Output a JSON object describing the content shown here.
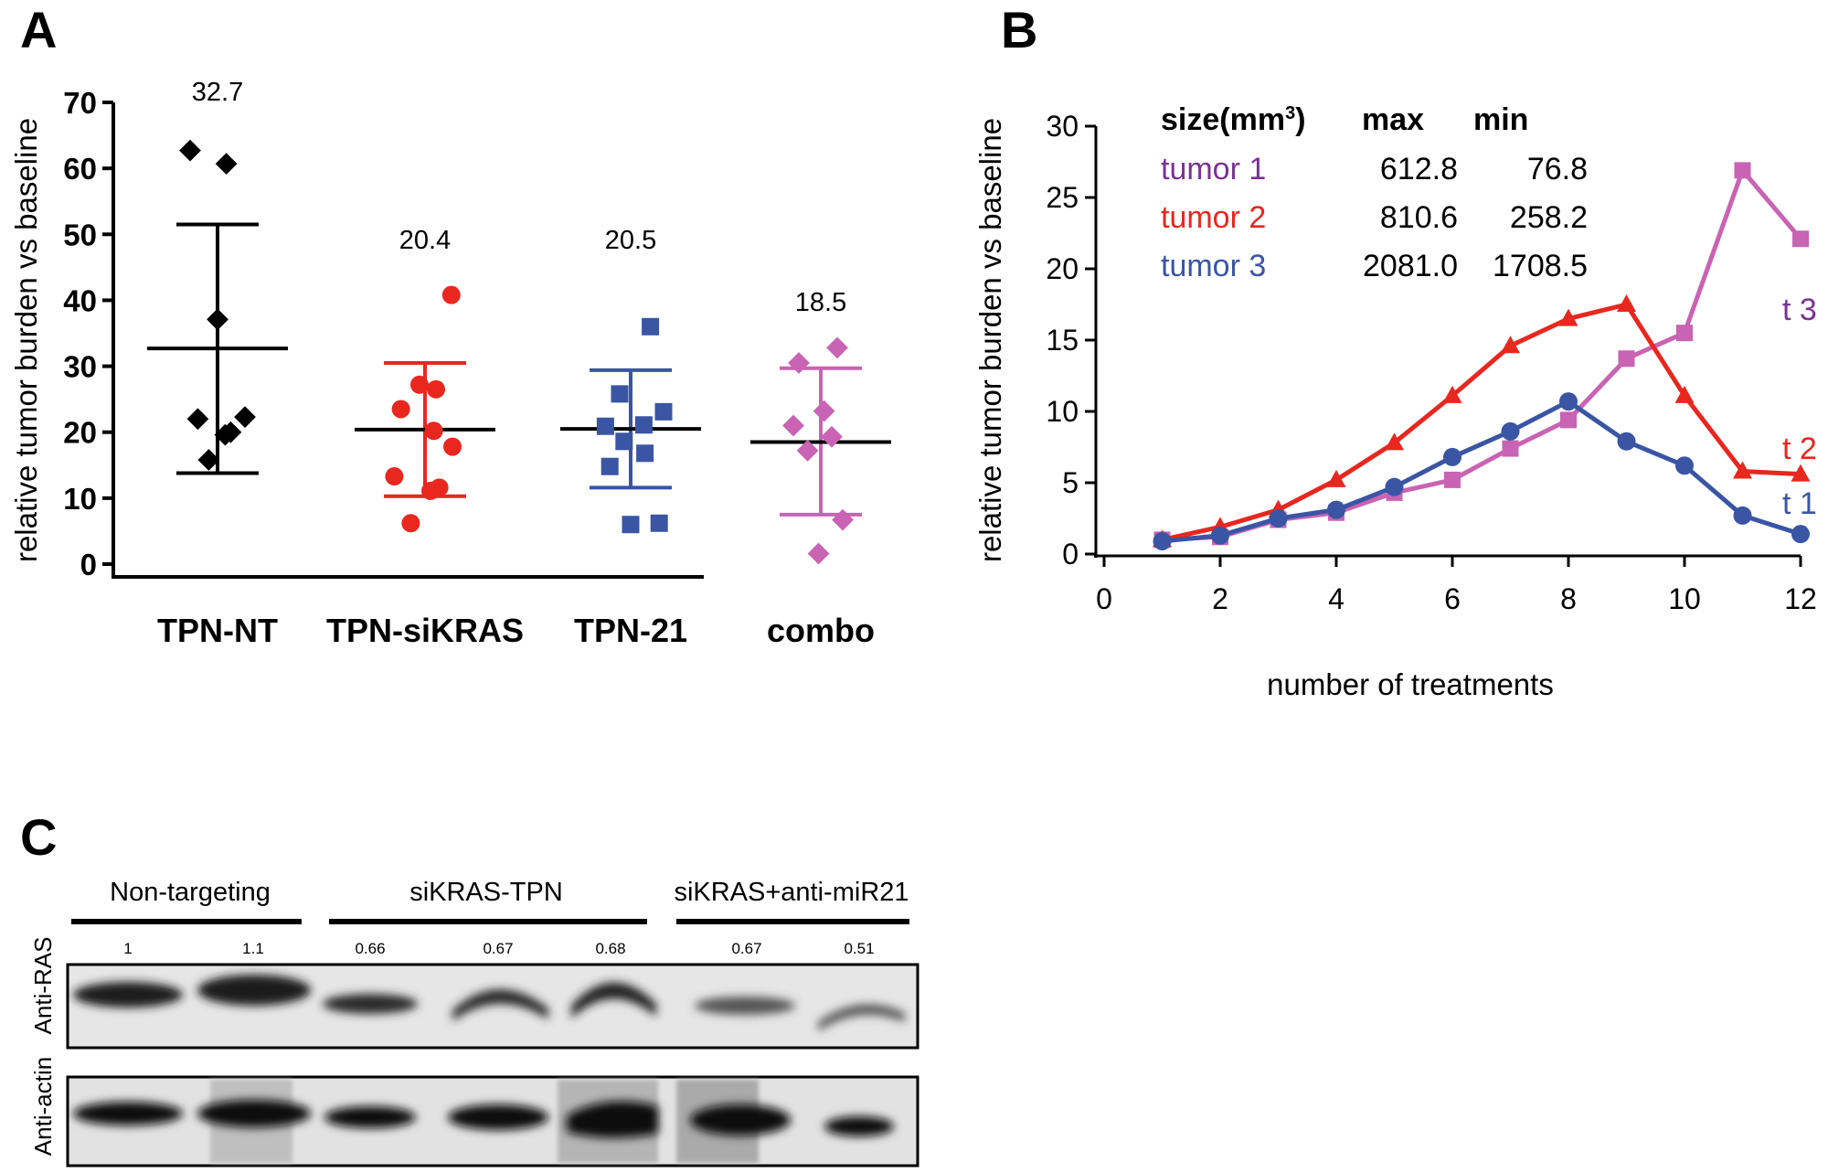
{
  "panels": {
    "a": "A",
    "b": "B",
    "c": "C"
  },
  "chart_data": [
    {
      "type": "scatter",
      "panel": "A",
      "ylabel": "relative tumor burden vs baseline",
      "ylim": [
        0,
        70
      ],
      "yticks": [
        "0",
        "10",
        "20",
        "30",
        "40",
        "50",
        "60",
        "70"
      ],
      "categories": [
        "TPN-NT",
        "TPN-siKRAS",
        "TPN-21",
        "combo"
      ],
      "series": [
        {
          "color": "#000000",
          "marker": "diamond",
          "mean_label": "32.7",
          "mean": 32.7,
          "sd_low": 13.8,
          "sd_high": 51.5,
          "points": [
            [
              -0.25,
              62.7
            ],
            [
              0.08,
              60.7
            ],
            [
              0.0,
              37.1
            ],
            [
              -0.18,
              22.0
            ],
            [
              0.25,
              22.3
            ],
            [
              0.07,
              19.6
            ],
            [
              0.12,
              20.0
            ],
            [
              -0.08,
              15.8
            ]
          ]
        },
        {
          "color": "#e8271f",
          "marker": "circle",
          "mean_label": "20.4",
          "mean": 20.4,
          "sd_low": 10.3,
          "sd_high": 30.5,
          "points": [
            [
              0.24,
              40.8
            ],
            [
              -0.05,
              27.2
            ],
            [
              0.1,
              26.5
            ],
            [
              -0.22,
              23.5
            ],
            [
              0.08,
              20.2
            ],
            [
              0.25,
              17.8
            ],
            [
              -0.28,
              13.3
            ],
            [
              0.05,
              11.1
            ],
            [
              0.13,
              11.6
            ],
            [
              -0.13,
              6.2
            ]
          ]
        },
        {
          "color": "#3a55a4",
          "marker": "square",
          "mean_label": "20.5",
          "mean": 20.5,
          "sd_low": 11.6,
          "sd_high": 29.4,
          "points": [
            [
              0.18,
              36.0
            ],
            [
              -0.1,
              25.8
            ],
            [
              0.3,
              23.1
            ],
            [
              -0.23,
              20.9
            ],
            [
              0.12,
              21.1
            ],
            [
              -0.06,
              18.6
            ],
            [
              0.13,
              16.8
            ],
            [
              -0.19,
              14.8
            ],
            [
              0.26,
              6.2
            ],
            [
              0.0,
              6.0
            ]
          ]
        },
        {
          "color": "#c963b3",
          "marker": "diamond",
          "mean_label": "18.5",
          "mean": 18.5,
          "sd_low": 7.5,
          "sd_high": 29.7,
          "points": [
            [
              0.15,
              32.8
            ],
            [
              -0.2,
              30.5
            ],
            [
              0.03,
              23.2
            ],
            [
              -0.25,
              21.0
            ],
            [
              0.1,
              19.3
            ],
            [
              -0.12,
              17.2
            ],
            [
              0.2,
              6.7
            ],
            [
              -0.02,
              1.6
            ]
          ]
        }
      ]
    },
    {
      "type": "line",
      "panel": "B",
      "xlabel": "number of treatments",
      "ylabel": "relative tumor burden vs baseline",
      "xlim": [
        0,
        12
      ],
      "ylim": [
        0,
        30
      ],
      "xticks": [
        "0",
        "2",
        "4",
        "6",
        "8",
        "10",
        "12"
      ],
      "yticks": [
        "0",
        "5",
        "10",
        "15",
        "20",
        "25",
        "30"
      ],
      "x": [
        1,
        2,
        3,
        4,
        5,
        6,
        7,
        8,
        9,
        10,
        11,
        12
      ],
      "series": [
        {
          "name": "t 1",
          "color": "#c963b3",
          "marker": "square",
          "values": [
            1.0,
            1.2,
            2.4,
            2.9,
            4.3,
            5.2,
            7.4,
            9.4,
            13.7,
            15.5,
            26.9,
            22.1
          ]
        },
        {
          "name": "t 2",
          "color": "#e8271f",
          "marker": "triangle",
          "values": [
            1.0,
            1.9,
            3.1,
            5.2,
            7.8,
            11.1,
            14.6,
            16.5,
            17.5,
            11.1,
            5.8,
            5.6
          ]
        },
        {
          "name": "t 3",
          "color": "#3a55a4",
          "marker": "circle",
          "values": [
            0.9,
            1.3,
            2.5,
            3.1,
            4.7,
            6.8,
            8.6,
            10.7,
            7.9,
            6.2,
            2.7,
            1.4
          ]
        }
      ],
      "series_labels": [
        {
          "text": "t 3",
          "color": "#7b3294"
        },
        {
          "text": "t 2",
          "color": "#e8271f"
        },
        {
          "text": "t 1",
          "color": "#3a55a4"
        }
      ],
      "table": {
        "header_prefix": "size(mm",
        "header_sup": "3",
        "header_suffix": ")",
        "col_max": "max",
        "col_min": "min",
        "rows": [
          {
            "name": "tumor 1",
            "max": "612.8",
            "min": "76.8",
            "color": "#7b3294"
          },
          {
            "name": "tumor 2",
            "max": "810.6",
            "min": "258.2",
            "color": "#e8271f"
          },
          {
            "name": "tumor 3",
            "max": "2081.0",
            "min": "1708.5",
            "color": "#3a55a4"
          }
        ]
      }
    }
  ],
  "blot": {
    "groups": [
      "Non-targeting",
      "siKRAS-TPN",
      "siKRAS+anti-miR21"
    ],
    "values": [
      "1",
      "1.1",
      "0.66",
      "0.67",
      "0.68",
      "0.67",
      "0.51"
    ],
    "rows": [
      "Anti-RAS",
      "Anti-actin"
    ]
  }
}
